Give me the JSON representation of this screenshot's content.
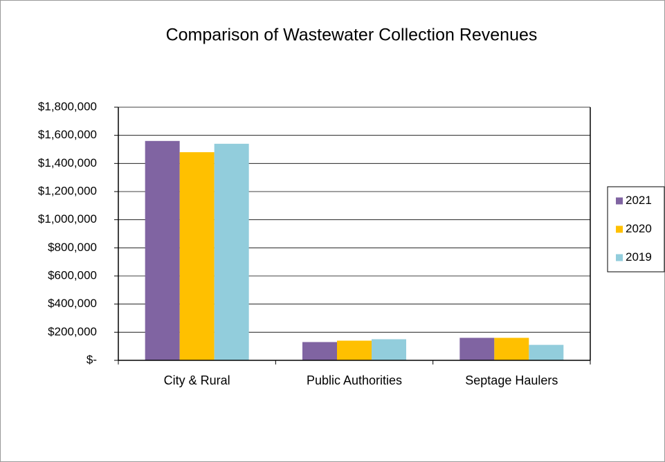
{
  "chart_data": {
    "type": "bar",
    "title": "Comparison of Wastewater Collection Revenues",
    "categories": [
      "City & Rural",
      "Public Authorities",
      "Septage Haulers"
    ],
    "series": [
      {
        "name": "2021",
        "color": "#8064a2",
        "values": [
          1560000,
          130000,
          160000
        ]
      },
      {
        "name": "2020",
        "color": "#ffc000",
        "values": [
          1480000,
          140000,
          160000
        ]
      },
      {
        "name": "2019",
        "color": "#92cddc",
        "values": [
          1540000,
          150000,
          110000
        ]
      }
    ],
    "ylim": [
      0,
      1800000
    ],
    "yticks": [
      {
        "value": 0,
        "label": "$-"
      },
      {
        "value": 200000,
        "label": "$200,000"
      },
      {
        "value": 400000,
        "label": "$400,000"
      },
      {
        "value": 600000,
        "label": "$600,000"
      },
      {
        "value": 800000,
        "label": "$800,000"
      },
      {
        "value": 1000000,
        "label": "$1,000,000"
      },
      {
        "value": 1200000,
        "label": "$1,200,000"
      },
      {
        "value": 1400000,
        "label": "$1,400,000"
      },
      {
        "value": 1600000,
        "label": "$1,600,000"
      },
      {
        "value": 1800000,
        "label": "$1,800,000"
      }
    ],
    "grid": true,
    "legend": "right"
  }
}
